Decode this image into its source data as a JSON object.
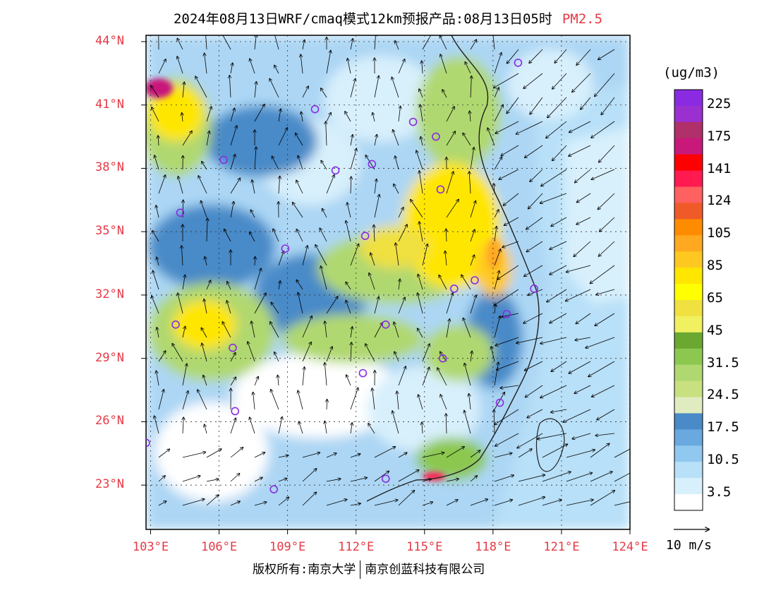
{
  "header": {
    "title": "2024年08月13日WRF/cmaq模式12km预报产品:08月13日05时",
    "pollutant": "PM2.5"
  },
  "map": {
    "lat_ticks": [
      "44°N",
      "41°N",
      "38°N",
      "35°N",
      "32°N",
      "29°N",
      "26°N",
      "23°N"
    ],
    "lon_ticks": [
      "103°E",
      "106°E",
      "109°E",
      "112°E",
      "115°E",
      "118°E",
      "121°E",
      "124°E"
    ],
    "lat_values": [
      44,
      41,
      38,
      35,
      32,
      29,
      26,
      23
    ],
    "lon_values": [
      103,
      106,
      109,
      112,
      115,
      118,
      121,
      124
    ],
    "lat_range": [
      20.9,
      44.3
    ],
    "lon_range": [
      102.8,
      124.0
    ]
  },
  "legend": {
    "units": "(ug/m3)",
    "labels": [
      "225",
      "175",
      "141",
      "124",
      "105",
      "85",
      "65",
      "45",
      "31.5",
      "24.5",
      "17.5",
      "10.5",
      "3.5"
    ],
    "colors": [
      "#8a2be2",
      "#9b30d0",
      "#b0306a",
      "#c8187a",
      "#ff0000",
      "#ff1a50",
      "#ff6060",
      "#f05a28",
      "#ff8c00",
      "#ffa820",
      "#ffc820",
      "#ffe600",
      "#ffff00",
      "#f0e040",
      "#f0f060",
      "#6aa832",
      "#8cc850",
      "#b0d870",
      "#c8e080",
      "#e0ecc0",
      "#4a8ac8",
      "#6aa8e0",
      "#90c8f0",
      "#b8e0f8",
      "#d8f0fc",
      "#ffffff"
    ]
  },
  "wind_reference": {
    "label": "10 m/s"
  },
  "cities": [
    {
      "lon": 119.1,
      "lat": 43.0
    },
    {
      "lon": 110.2,
      "lat": 40.8
    },
    {
      "lon": 114.5,
      "lat": 40.2
    },
    {
      "lon": 115.5,
      "lat": 39.5
    },
    {
      "lon": 106.2,
      "lat": 38.4
    },
    {
      "lon": 111.1,
      "lat": 37.9
    },
    {
      "lon": 112.7,
      "lat": 38.2
    },
    {
      "lon": 115.7,
      "lat": 37.0
    },
    {
      "lon": 104.3,
      "lat": 35.9
    },
    {
      "lon": 112.4,
      "lat": 34.8
    },
    {
      "lon": 108.9,
      "lat": 34.2
    },
    {
      "lon": 117.2,
      "lat": 32.7
    },
    {
      "lon": 116.3,
      "lat": 32.3
    },
    {
      "lon": 119.8,
      "lat": 32.3
    },
    {
      "lon": 118.6,
      "lat": 31.1
    },
    {
      "lon": 104.1,
      "lat": 30.6
    },
    {
      "lon": 113.3,
      "lat": 30.6
    },
    {
      "lon": 106.6,
      "lat": 29.5
    },
    {
      "lon": 115.8,
      "lat": 29.0
    },
    {
      "lon": 112.3,
      "lat": 28.3
    },
    {
      "lon": 106.7,
      "lat": 26.5
    },
    {
      "lon": 102.8,
      "lat": 25.0
    },
    {
      "lon": 118.3,
      "lat": 26.9
    },
    {
      "lon": 108.4,
      "lat": 22.8
    },
    {
      "lon": 113.3,
      "lat": 23.3
    }
  ],
  "footer": {
    "copyright_left": "版权所有:南京大学",
    "copyright_right": "南京创蓝科技有限公司"
  }
}
